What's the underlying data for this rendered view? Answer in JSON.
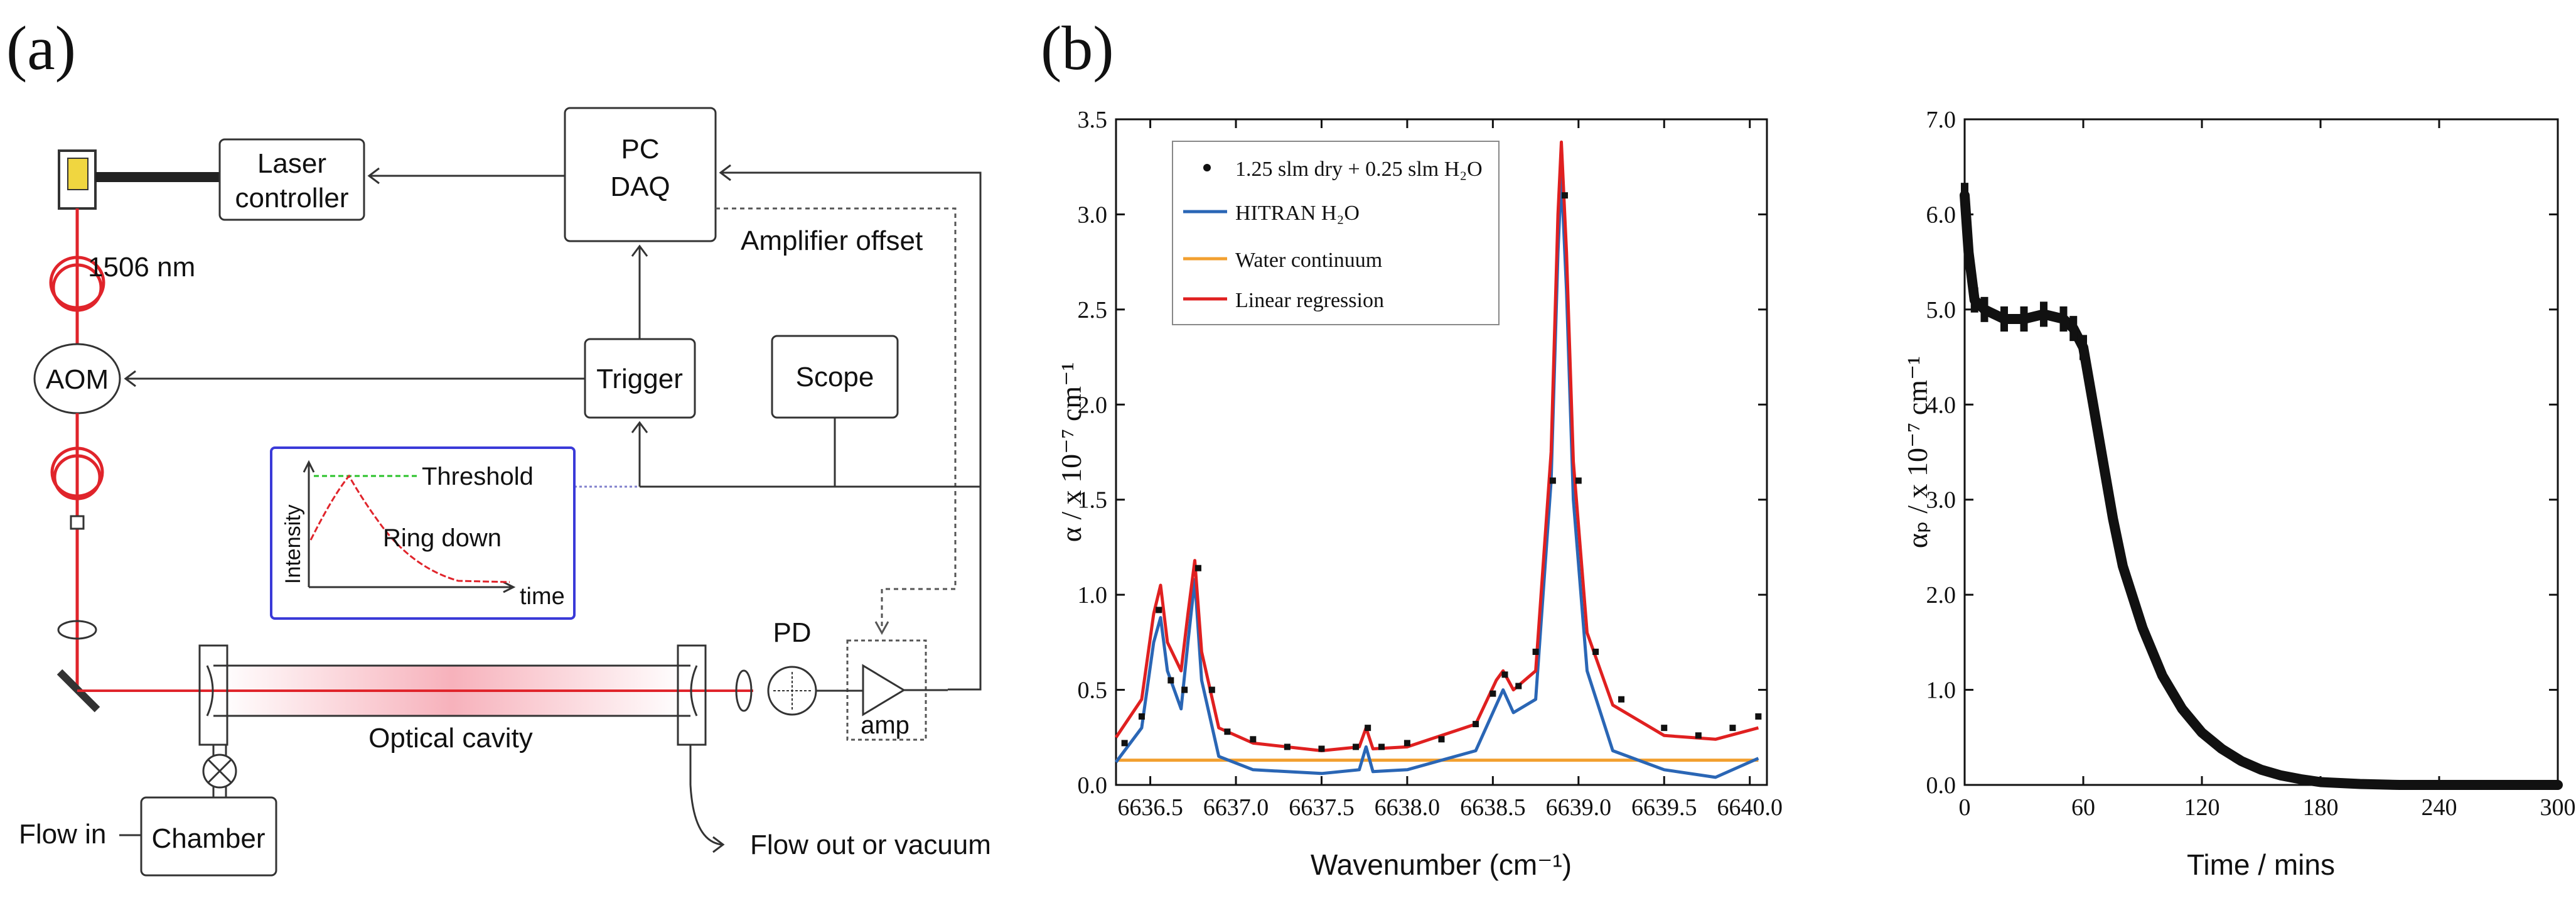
{
  "panels": {
    "a": "(a)",
    "b": "(b)"
  },
  "schematic": {
    "laser_controller_line1": "Laser",
    "laser_controller_line2": "controller",
    "pc_line1": "PC",
    "pc_line2": "DAQ",
    "amplifier_offset": "Amplifier offset",
    "wavelength": "1506 nm",
    "aom": "AOM",
    "trigger": "Trigger",
    "scope": "Scope",
    "inset_threshold": "Threshold",
    "inset_ringdown": "Ring down",
    "inset_ylabel": "Intensity",
    "inset_xlabel": "time",
    "pd": "PD",
    "amp": "amp",
    "optical_cavity": "Optical cavity",
    "flow_in": "Flow in",
    "chamber": "Chamber",
    "flow_out": "Flow out or vacuum"
  },
  "colors": {
    "laser_red": "#e0242b",
    "inset_border": "#3a3ad8",
    "threshold_green": "#29c229",
    "hitran_blue": "#2a66b5",
    "continuum_orange": "#f2a030",
    "fit_red": "#e02020",
    "data_black": "#111111"
  },
  "chart_data": [
    {
      "type": "line",
      "xlabel": "Wavenumber (cm⁻¹)",
      "ylabel": "α / x 10⁻⁷ cm⁻¹",
      "xlim": [
        6636.3,
        6640.1
      ],
      "ylim": [
        0.0,
        3.5
      ],
      "xticks": [
        "6636.5",
        "6637.0",
        "6637.5",
        "6638.0",
        "6638.5",
        "6639.0",
        "6639.5",
        "6640.0"
      ],
      "yticks": [
        "0.0",
        "0.5",
        "1.0",
        "1.5",
        "2.0",
        "2.5",
        "3.0",
        "3.5"
      ],
      "legend_position": "top-left",
      "series": [
        {
          "name": "1.25 slm dry + 0.25 slm H₂O",
          "style": "points",
          "x": [
            6636.35,
            6636.45,
            6636.55,
            6636.62,
            6636.7,
            6636.78,
            6636.86,
            6636.95,
            6637.1,
            6637.3,
            6637.5,
            6637.7,
            6637.77,
            6637.85,
            6638.0,
            6638.2,
            6638.4,
            6638.5,
            6638.57,
            6638.65,
            6638.75,
            6638.85,
            6638.92,
            6639.0,
            6639.1,
            6639.25,
            6639.5,
            6639.7,
            6639.9,
            6640.05
          ],
          "values": [
            0.22,
            0.36,
            0.92,
            0.55,
            0.5,
            1.14,
            0.5,
            0.28,
            0.24,
            0.2,
            0.19,
            0.2,
            0.3,
            0.2,
            0.22,
            0.24,
            0.32,
            0.48,
            0.58,
            0.52,
            0.7,
            1.6,
            3.1,
            1.6,
            0.7,
            0.45,
            0.3,
            0.26,
            0.3,
            0.36
          ]
        },
        {
          "name": "HITRAN H₂O",
          "style": "line",
          "color": "#2a66b5",
          "x": [
            6636.3,
            6636.45,
            6636.52,
            6636.56,
            6636.6,
            6636.68,
            6636.72,
            6636.76,
            6636.8,
            6636.9,
            6637.1,
            6637.5,
            6637.72,
            6637.76,
            6637.8,
            6638.0,
            6638.4,
            6638.52,
            6638.56,
            6638.62,
            6638.75,
            6638.84,
            6638.88,
            6638.9,
            6638.93,
            6638.97,
            6639.05,
            6639.2,
            6639.5,
            6639.8,
            6640.05
          ],
          "values": [
            0.12,
            0.3,
            0.75,
            0.88,
            0.6,
            0.4,
            0.75,
            1.08,
            0.55,
            0.15,
            0.08,
            0.06,
            0.08,
            0.2,
            0.07,
            0.08,
            0.18,
            0.42,
            0.5,
            0.38,
            0.45,
            1.6,
            2.8,
            3.2,
            2.6,
            1.5,
            0.6,
            0.18,
            0.08,
            0.04,
            0.14
          ]
        },
        {
          "name": "Water continuum",
          "style": "line",
          "color": "#f2a030",
          "x": [
            6636.3,
            6640.05
          ],
          "values": [
            0.13,
            0.13
          ]
        },
        {
          "name": "Linear regression",
          "style": "line",
          "color": "#e02020",
          "x": [
            6636.3,
            6636.45,
            6636.52,
            6636.56,
            6636.6,
            6636.68,
            6636.72,
            6636.76,
            6636.8,
            6636.9,
            6637.1,
            6637.5,
            6637.72,
            6637.76,
            6637.8,
            6638.0,
            6638.4,
            6638.52,
            6638.56,
            6638.62,
            6638.75,
            6638.84,
            6638.88,
            6638.9,
            6638.93,
            6638.97,
            6639.05,
            6639.2,
            6639.5,
            6639.8,
            6640.05
          ],
          "values": [
            0.25,
            0.45,
            0.9,
            1.05,
            0.75,
            0.6,
            0.9,
            1.18,
            0.7,
            0.3,
            0.22,
            0.18,
            0.2,
            0.3,
            0.19,
            0.2,
            0.32,
            0.55,
            0.6,
            0.5,
            0.6,
            1.75,
            3.0,
            3.38,
            2.8,
            1.7,
            0.8,
            0.42,
            0.26,
            0.24,
            0.3
          ]
        }
      ]
    },
    {
      "type": "scatter",
      "xlabel": "Time / mins",
      "ylabel": "αₚ / x 10⁻⁷ cm⁻¹",
      "xlim": [
        0,
        300
      ],
      "ylim": [
        0.0,
        7.0
      ],
      "xticks": [
        "0",
        "60",
        "120",
        "180",
        "240",
        "300"
      ],
      "yticks": [
        "0.0",
        "1.0",
        "2.0",
        "3.0",
        "4.0",
        "5.0",
        "6.0",
        "7.0"
      ],
      "series": [
        {
          "name": "alpha_p",
          "x": [
            0,
            2,
            5,
            10,
            20,
            30,
            40,
            50,
            55,
            60,
            65,
            70,
            75,
            80,
            90,
            100,
            110,
            120,
            130,
            140,
            150,
            160,
            170,
            180,
            190,
            200,
            220,
            240,
            260,
            280,
            300
          ],
          "values": [
            6.2,
            5.6,
            5.1,
            5.0,
            4.9,
            4.9,
            4.95,
            4.9,
            4.8,
            4.6,
            4.0,
            3.4,
            2.8,
            2.3,
            1.65,
            1.15,
            0.8,
            0.55,
            0.38,
            0.25,
            0.16,
            0.1,
            0.06,
            0.03,
            0.02,
            0.01,
            0.0,
            0.0,
            0.0,
            0.0,
            0.0
          ]
        }
      ]
    }
  ]
}
